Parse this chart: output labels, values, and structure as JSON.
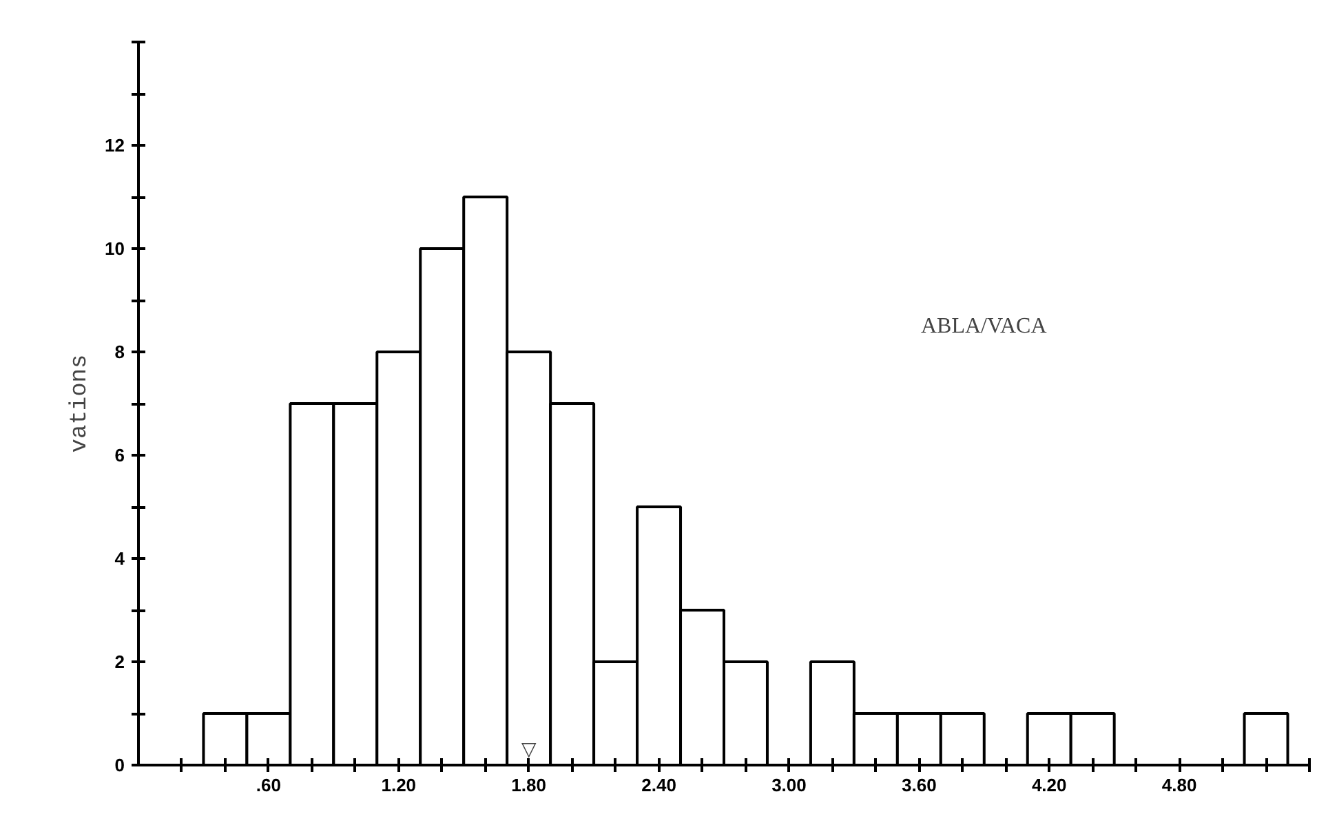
{
  "chart_data": {
    "type": "histogram",
    "ylabel": "vations",
    "bins": [
      0.3,
      0.5,
      0.7,
      0.9,
      1.1,
      1.3,
      1.5,
      1.7,
      1.9,
      2.1,
      2.3,
      2.5,
      2.7,
      2.9,
      3.1,
      3.3,
      3.5,
      3.7,
      3.9,
      4.1,
      4.3,
      4.5,
      4.7,
      4.9,
      5.1,
      5.3
    ],
    "values": [
      1,
      1,
      7,
      7,
      8,
      10,
      11,
      8,
      7,
      2,
      5,
      3,
      2,
      0,
      2,
      1,
      1,
      1,
      0,
      1,
      1,
      0,
      0,
      0,
      1
    ],
    "color": "#ffffff",
    "xlim": [
      0,
      5.4
    ],
    "xticks": [
      {
        "value": 0.2,
        "label": null
      },
      {
        "value": 0.4,
        "label": null
      },
      {
        "value": 0.6,
        "label": ".60"
      },
      {
        "value": 0.8,
        "label": null
      },
      {
        "value": 1.0,
        "label": null
      },
      {
        "value": 1.2,
        "label": "1.20"
      },
      {
        "value": 1.4,
        "label": null
      },
      {
        "value": 1.6,
        "label": null
      },
      {
        "value": 1.8,
        "label": "1.80"
      },
      {
        "value": 2.0,
        "label": null
      },
      {
        "value": 2.2,
        "label": null
      },
      {
        "value": 2.4,
        "label": "2.40"
      },
      {
        "value": 2.6,
        "label": null
      },
      {
        "value": 2.8,
        "label": null
      },
      {
        "value": 3.0,
        "label": "3.00"
      },
      {
        "value": 3.2,
        "label": null
      },
      {
        "value": 3.4,
        "label": null
      },
      {
        "value": 3.6,
        "label": "3.60"
      },
      {
        "value": 3.8,
        "label": null
      },
      {
        "value": 4.0,
        "label": null
      },
      {
        "value": 4.2,
        "label": "4.20"
      },
      {
        "value": 4.4,
        "label": null
      },
      {
        "value": 4.6,
        "label": null
      },
      {
        "value": 4.8,
        "label": "4.80"
      },
      {
        "value": 5.0,
        "label": null
      },
      {
        "value": 5.2,
        "label": null
      },
      {
        "value": 5.4,
        "label": null
      }
    ],
    "ylim": [
      0,
      14
    ],
    "yticks": [
      0,
      {
        "value": 1,
        "label": null
      },
      2,
      {
        "value": 3,
        "label": null
      },
      4,
      {
        "value": 5,
        "label": null
      },
      6,
      {
        "value": 7,
        "label": null
      },
      8,
      {
        "value": 9,
        "label": null
      },
      10,
      {
        "value": 11,
        "label": null
      },
      12,
      {
        "value": 13,
        "label": null
      },
      {
        "value": 14,
        "label": null
      }
    ],
    "annotations": [
      "ABLA/VACA",
      {
        "text": "▽",
        "x": 1.8,
        "y": 0
      }
    ],
    "grid": false
  }
}
